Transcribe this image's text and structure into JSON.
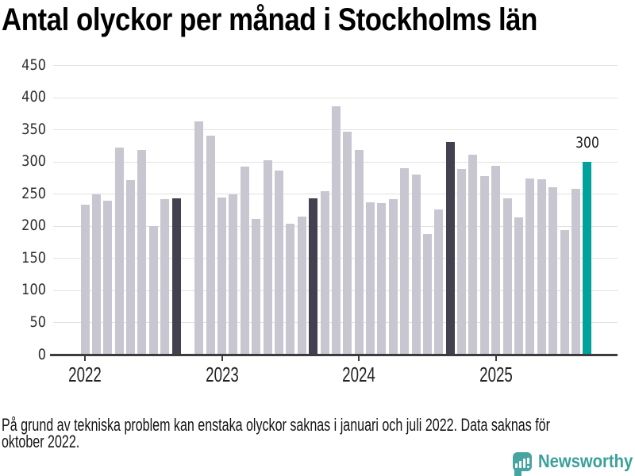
{
  "title": "Antal olyckor per månad i Stockholms län",
  "footnote": {
    "line1": "På grund av tekniska problem kan enstaka olyckor saknas i januari och juli 2022. Data saknas för",
    "line2": "oktober 2022."
  },
  "branding": {
    "name": "Newsworthy",
    "icon": "speech-bubble-bar-chart-icon",
    "icon_color": "#46a5a0",
    "text_color": "#3aa09a"
  },
  "colors": {
    "bar_default": "#c8c7d1",
    "bar_september": "#434150",
    "bar_latest": "#00a29b",
    "gridline": "#e2e2e2",
    "axis": "#3c3c3c",
    "text": "#1a1a1a"
  },
  "chart_data": {
    "type": "bar",
    "title": "Antal olyckor per månad i Stockholms län",
    "xlabel": "",
    "ylabel": "",
    "ylim": [
      0,
      450
    ],
    "y_ticks": [
      0,
      50,
      100,
      150,
      200,
      250,
      300,
      350,
      400,
      450
    ],
    "x_tick_labels": [
      "2022",
      "2023",
      "2024",
      "2025"
    ],
    "grid": "horizontal",
    "legend": "none",
    "missing_months": [
      "2022-10"
    ],
    "highlighted_months": [
      "2022-09",
      "2023-09",
      "2024-09"
    ],
    "latest_month": "2025-09",
    "latest_value_label": "300",
    "points": [
      {
        "month": "2022-01",
        "value": 233
      },
      {
        "month": "2022-02",
        "value": 249
      },
      {
        "month": "2022-03",
        "value": 239
      },
      {
        "month": "2022-04",
        "value": 322
      },
      {
        "month": "2022-05",
        "value": 271
      },
      {
        "month": "2022-06",
        "value": 318
      },
      {
        "month": "2022-07",
        "value": 200
      },
      {
        "month": "2022-08",
        "value": 242
      },
      {
        "month": "2022-09",
        "value": 243
      },
      {
        "month": "2022-10",
        "value": null
      },
      {
        "month": "2022-11",
        "value": 362
      },
      {
        "month": "2022-12",
        "value": 340
      },
      {
        "month": "2023-01",
        "value": 244
      },
      {
        "month": "2023-02",
        "value": 249
      },
      {
        "month": "2023-03",
        "value": 292
      },
      {
        "month": "2023-04",
        "value": 211
      },
      {
        "month": "2023-05",
        "value": 302
      },
      {
        "month": "2023-06",
        "value": 286
      },
      {
        "month": "2023-07",
        "value": 203
      },
      {
        "month": "2023-08",
        "value": 215
      },
      {
        "month": "2023-09",
        "value": 243
      },
      {
        "month": "2023-10",
        "value": 254
      },
      {
        "month": "2023-11",
        "value": 386
      },
      {
        "month": "2023-12",
        "value": 346
      },
      {
        "month": "2024-01",
        "value": 318
      },
      {
        "month": "2024-02",
        "value": 237
      },
      {
        "month": "2024-03",
        "value": 236
      },
      {
        "month": "2024-04",
        "value": 242
      },
      {
        "month": "2024-05",
        "value": 290
      },
      {
        "month": "2024-06",
        "value": 280
      },
      {
        "month": "2024-07",
        "value": 187
      },
      {
        "month": "2024-08",
        "value": 226
      },
      {
        "month": "2024-09",
        "value": 331
      },
      {
        "month": "2024-10",
        "value": 288
      },
      {
        "month": "2024-11",
        "value": 311
      },
      {
        "month": "2024-12",
        "value": 278
      },
      {
        "month": "2025-01",
        "value": 293
      },
      {
        "month": "2025-02",
        "value": 243
      },
      {
        "month": "2025-03",
        "value": 213
      },
      {
        "month": "2025-04",
        "value": 274
      },
      {
        "month": "2025-05",
        "value": 272
      },
      {
        "month": "2025-06",
        "value": 260
      },
      {
        "month": "2025-07",
        "value": 194
      },
      {
        "month": "2025-08",
        "value": 258
      },
      {
        "month": "2025-09",
        "value": 300
      }
    ]
  }
}
